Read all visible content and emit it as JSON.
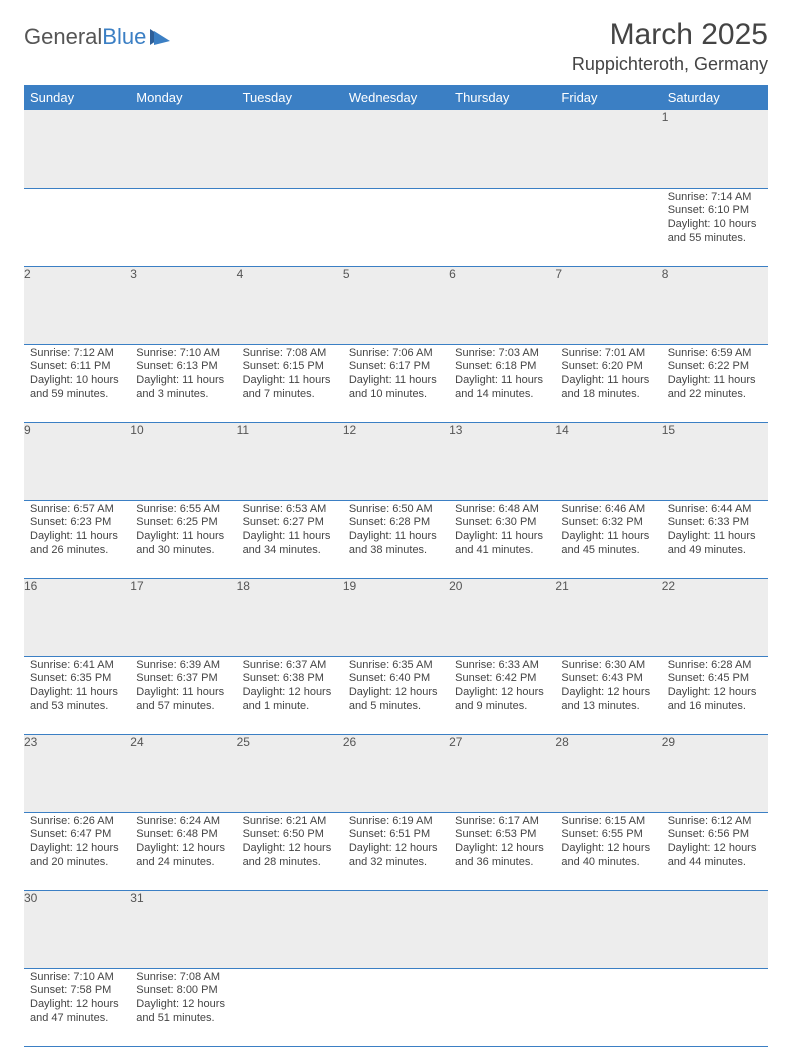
{
  "logo": {
    "text1": "General",
    "text2": "Blue"
  },
  "title": "March 2025",
  "location": "Ruppichteroth, Germany",
  "colors": {
    "header_bg": "#3b7fc4",
    "header_fg": "#ffffff",
    "daynum_bg": "#ededed",
    "border": "#3b7fc4",
    "text": "#444444"
  },
  "weekdays": [
    "Sunday",
    "Monday",
    "Tuesday",
    "Wednesday",
    "Thursday",
    "Friday",
    "Saturday"
  ],
  "weeks": [
    [
      null,
      null,
      null,
      null,
      null,
      null,
      {
        "n": "1",
        "sr": "Sunrise: 7:14 AM",
        "ss": "Sunset: 6:10 PM",
        "dl": "Daylight: 10 hours and 55 minutes."
      }
    ],
    [
      {
        "n": "2",
        "sr": "Sunrise: 7:12 AM",
        "ss": "Sunset: 6:11 PM",
        "dl": "Daylight: 10 hours and 59 minutes."
      },
      {
        "n": "3",
        "sr": "Sunrise: 7:10 AM",
        "ss": "Sunset: 6:13 PM",
        "dl": "Daylight: 11 hours and 3 minutes."
      },
      {
        "n": "4",
        "sr": "Sunrise: 7:08 AM",
        "ss": "Sunset: 6:15 PM",
        "dl": "Daylight: 11 hours and 7 minutes."
      },
      {
        "n": "5",
        "sr": "Sunrise: 7:06 AM",
        "ss": "Sunset: 6:17 PM",
        "dl": "Daylight: 11 hours and 10 minutes."
      },
      {
        "n": "6",
        "sr": "Sunrise: 7:03 AM",
        "ss": "Sunset: 6:18 PM",
        "dl": "Daylight: 11 hours and 14 minutes."
      },
      {
        "n": "7",
        "sr": "Sunrise: 7:01 AM",
        "ss": "Sunset: 6:20 PM",
        "dl": "Daylight: 11 hours and 18 minutes."
      },
      {
        "n": "8",
        "sr": "Sunrise: 6:59 AM",
        "ss": "Sunset: 6:22 PM",
        "dl": "Daylight: 11 hours and 22 minutes."
      }
    ],
    [
      {
        "n": "9",
        "sr": "Sunrise: 6:57 AM",
        "ss": "Sunset: 6:23 PM",
        "dl": "Daylight: 11 hours and 26 minutes."
      },
      {
        "n": "10",
        "sr": "Sunrise: 6:55 AM",
        "ss": "Sunset: 6:25 PM",
        "dl": "Daylight: 11 hours and 30 minutes."
      },
      {
        "n": "11",
        "sr": "Sunrise: 6:53 AM",
        "ss": "Sunset: 6:27 PM",
        "dl": "Daylight: 11 hours and 34 minutes."
      },
      {
        "n": "12",
        "sr": "Sunrise: 6:50 AM",
        "ss": "Sunset: 6:28 PM",
        "dl": "Daylight: 11 hours and 38 minutes."
      },
      {
        "n": "13",
        "sr": "Sunrise: 6:48 AM",
        "ss": "Sunset: 6:30 PM",
        "dl": "Daylight: 11 hours and 41 minutes."
      },
      {
        "n": "14",
        "sr": "Sunrise: 6:46 AM",
        "ss": "Sunset: 6:32 PM",
        "dl": "Daylight: 11 hours and 45 minutes."
      },
      {
        "n": "15",
        "sr": "Sunrise: 6:44 AM",
        "ss": "Sunset: 6:33 PM",
        "dl": "Daylight: 11 hours and 49 minutes."
      }
    ],
    [
      {
        "n": "16",
        "sr": "Sunrise: 6:41 AM",
        "ss": "Sunset: 6:35 PM",
        "dl": "Daylight: 11 hours and 53 minutes."
      },
      {
        "n": "17",
        "sr": "Sunrise: 6:39 AM",
        "ss": "Sunset: 6:37 PM",
        "dl": "Daylight: 11 hours and 57 minutes."
      },
      {
        "n": "18",
        "sr": "Sunrise: 6:37 AM",
        "ss": "Sunset: 6:38 PM",
        "dl": "Daylight: 12 hours and 1 minute."
      },
      {
        "n": "19",
        "sr": "Sunrise: 6:35 AM",
        "ss": "Sunset: 6:40 PM",
        "dl": "Daylight: 12 hours and 5 minutes."
      },
      {
        "n": "20",
        "sr": "Sunrise: 6:33 AM",
        "ss": "Sunset: 6:42 PM",
        "dl": "Daylight: 12 hours and 9 minutes."
      },
      {
        "n": "21",
        "sr": "Sunrise: 6:30 AM",
        "ss": "Sunset: 6:43 PM",
        "dl": "Daylight: 12 hours and 13 minutes."
      },
      {
        "n": "22",
        "sr": "Sunrise: 6:28 AM",
        "ss": "Sunset: 6:45 PM",
        "dl": "Daylight: 12 hours and 16 minutes."
      }
    ],
    [
      {
        "n": "23",
        "sr": "Sunrise: 6:26 AM",
        "ss": "Sunset: 6:47 PM",
        "dl": "Daylight: 12 hours and 20 minutes."
      },
      {
        "n": "24",
        "sr": "Sunrise: 6:24 AM",
        "ss": "Sunset: 6:48 PM",
        "dl": "Daylight: 12 hours and 24 minutes."
      },
      {
        "n": "25",
        "sr": "Sunrise: 6:21 AM",
        "ss": "Sunset: 6:50 PM",
        "dl": "Daylight: 12 hours and 28 minutes."
      },
      {
        "n": "26",
        "sr": "Sunrise: 6:19 AM",
        "ss": "Sunset: 6:51 PM",
        "dl": "Daylight: 12 hours and 32 minutes."
      },
      {
        "n": "27",
        "sr": "Sunrise: 6:17 AM",
        "ss": "Sunset: 6:53 PM",
        "dl": "Daylight: 12 hours and 36 minutes."
      },
      {
        "n": "28",
        "sr": "Sunrise: 6:15 AM",
        "ss": "Sunset: 6:55 PM",
        "dl": "Daylight: 12 hours and 40 minutes."
      },
      {
        "n": "29",
        "sr": "Sunrise: 6:12 AM",
        "ss": "Sunset: 6:56 PM",
        "dl": "Daylight: 12 hours and 44 minutes."
      }
    ],
    [
      {
        "n": "30",
        "sr": "Sunrise: 7:10 AM",
        "ss": "Sunset: 7:58 PM",
        "dl": "Daylight: 12 hours and 47 minutes."
      },
      {
        "n": "31",
        "sr": "Sunrise: 7:08 AM",
        "ss": "Sunset: 8:00 PM",
        "dl": "Daylight: 12 hours and 51 minutes."
      },
      null,
      null,
      null,
      null,
      null
    ]
  ]
}
